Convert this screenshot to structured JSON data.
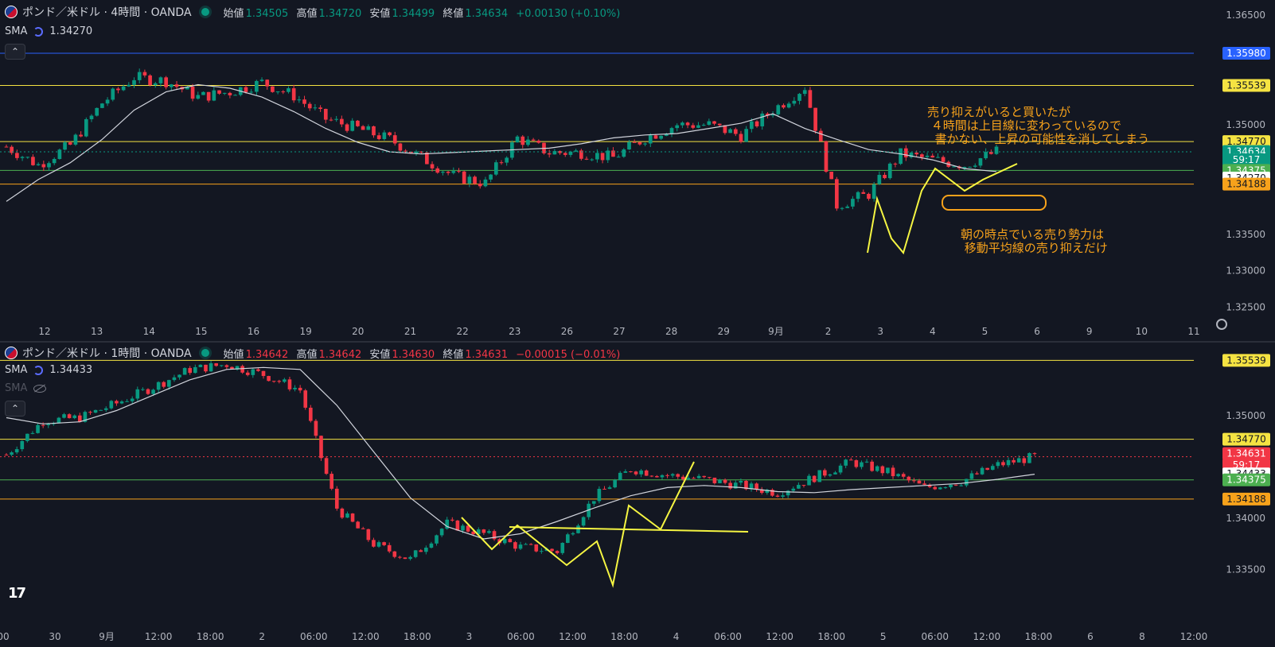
{
  "colors": {
    "background": "#131722",
    "up": "#089981",
    "down": "#f23645",
    "sma": "#d1d4dc",
    "yellow_line": "#f5e342",
    "orange_line": "#f7a21b",
    "green_line": "#4caf50",
    "blue_line": "#2962ff",
    "annotation": "#f7a21b",
    "drawing": "#f5f542"
  },
  "top": {
    "symbol": "ポンド／米ドル · 4時間 · OANDA",
    "ohlc": {
      "open_label": "始値",
      "open": "1.34505",
      "high_label": "高値",
      "high": "1.34720",
      "low_label": "安値",
      "low": "1.34499",
      "close_label": "終値",
      "close": "1.34634",
      "change": "+0.00130 (+0.10%)"
    },
    "sma_label": "SMA",
    "sma_value": "1.34270",
    "collapse_icon": "chevron-up-icon",
    "axis_ticks": [
      "1.36500",
      "1.35000",
      "1.33500",
      "1.33000",
      "1.32500"
    ],
    "price_tags": {
      "blue": "1.35980",
      "yellow_top": "1.35539",
      "yellow": "1.34770",
      "last": "1.34634",
      "countdown": "59:17",
      "green": "1.34375",
      "sma": "1.34270",
      "orange": "1.34188"
    },
    "time_ticks": [
      "12",
      "13",
      "14",
      "15",
      "16",
      "19",
      "20",
      "21",
      "22",
      "23",
      "26",
      "27",
      "28",
      "29",
      "9月",
      "2",
      "3",
      "4",
      "5",
      "6",
      "9",
      "10",
      "11"
    ],
    "annotation_1": "売り抑えがいると買いたが\n ４時間は上目線に変わっているので\n  書かない、上昇の可能性を消してしまう",
    "annotation_2": "朝の時点でいる売り勢力は\n 移動平均線の売り抑えだけ"
  },
  "bottom": {
    "symbol": "ポンド／米ドル · 1時間 · OANDA",
    "ohlc": {
      "open_label": "始値",
      "open": "1.34642",
      "high_label": "高値",
      "high": "1.34642",
      "low_label": "安値",
      "low": "1.34630",
      "close_label": "終値",
      "close": "1.34631",
      "change": "−0.00015 (−0.01%)"
    },
    "sma_label": "SMA",
    "sma_value": "1.34433",
    "sma2_label": "SMA",
    "collapse_icon": "chevron-up-icon",
    "axis_ticks": [
      "1.35000",
      "1.34000",
      "1.33500"
    ],
    "price_tags": {
      "yellow_top": "1.35539",
      "yellow": "1.34770",
      "last": "1.34631",
      "countdown": "59:17",
      "sma": "1.34433",
      "green": "1.34375",
      "orange": "1.34188"
    },
    "time_ticks": [
      "00",
      "30",
      "9月",
      "12:00",
      "18:00",
      "2",
      "06:00",
      "12:00",
      "18:00",
      "3",
      "06:00",
      "12:00",
      "18:00",
      "4",
      "06:00",
      "12:00",
      "18:00",
      "5",
      "06:00",
      "12:00",
      "18:00",
      "6",
      "8",
      "12:00"
    ],
    "logo": "TV-logo-icon"
  },
  "chart_data": [
    {
      "type": "candlestick",
      "title": "ポンド／米ドル · 4時間 · OANDA",
      "ylim": [
        1.323,
        1.366
      ],
      "horizontal_lines": [
        1.3598,
        1.35539,
        1.3477,
        1.34375,
        1.34188
      ],
      "x": [
        "12",
        "13",
        "14",
        "15",
        "16",
        "19",
        "20",
        "21",
        "22",
        "23",
        "26",
        "27",
        "28",
        "29",
        "9月",
        "2",
        "3",
        "4",
        "5",
        "6"
      ],
      "close_path": [
        1.347,
        1.3445,
        1.3472,
        1.353,
        1.3565,
        1.356,
        1.3538,
        1.3545,
        1.3558,
        1.354,
        1.3508,
        1.3495,
        1.348,
        1.3455,
        1.343,
        1.342,
        1.3482,
        1.3462,
        1.3462,
        1.3455,
        1.3482,
        1.35,
        1.35,
        1.3485,
        1.352,
        1.3552,
        1.339,
        1.3405,
        1.346,
        1.3452,
        1.3445,
        1.3463
      ],
      "sma_path": [
        1.3395,
        1.3425,
        1.3448,
        1.348,
        1.352,
        1.3545,
        1.3555,
        1.355,
        1.3538,
        1.3518,
        1.3495,
        1.3476,
        1.3463,
        1.346,
        1.3462,
        1.3464,
        1.3466,
        1.3468,
        1.3474,
        1.3482,
        1.3486,
        1.3488,
        1.3495,
        1.3502,
        1.3515,
        1.3495,
        1.348,
        1.3466,
        1.346,
        1.3452,
        1.344,
        1.3436
      ]
    },
    {
      "type": "candlestick",
      "title": "ポンド／米ドル · 1時間 · OANDA",
      "ylim": [
        1.3325,
        1.3565
      ],
      "horizontal_lines": [
        1.35539,
        1.3477,
        1.34375,
        1.34188
      ],
      "x": [
        "30",
        "9月",
        "2",
        "3",
        "4",
        "5",
        "6"
      ],
      "close_path": [
        1.3462,
        1.3495,
        1.3498,
        1.3512,
        1.3528,
        1.3545,
        1.355,
        1.354,
        1.3525,
        1.341,
        1.3375,
        1.336,
        1.3395,
        1.3385,
        1.3372,
        1.3368,
        1.342,
        1.3448,
        1.3442,
        1.3438,
        1.3432,
        1.3425,
        1.344,
        1.3455,
        1.3445,
        1.343,
        1.3436,
        1.3452,
        1.346
      ],
      "sma_path": [
        1.3498,
        1.3492,
        1.3494,
        1.3505,
        1.352,
        1.3535,
        1.3545,
        1.3547,
        1.3545,
        1.351,
        1.3465,
        1.342,
        1.3392,
        1.338,
        1.3385,
        1.3397,
        1.341,
        1.3422,
        1.343,
        1.3432,
        1.343,
        1.3426,
        1.3425,
        1.3428,
        1.343,
        1.3432,
        1.3434,
        1.3438,
        1.3443
      ]
    }
  ]
}
